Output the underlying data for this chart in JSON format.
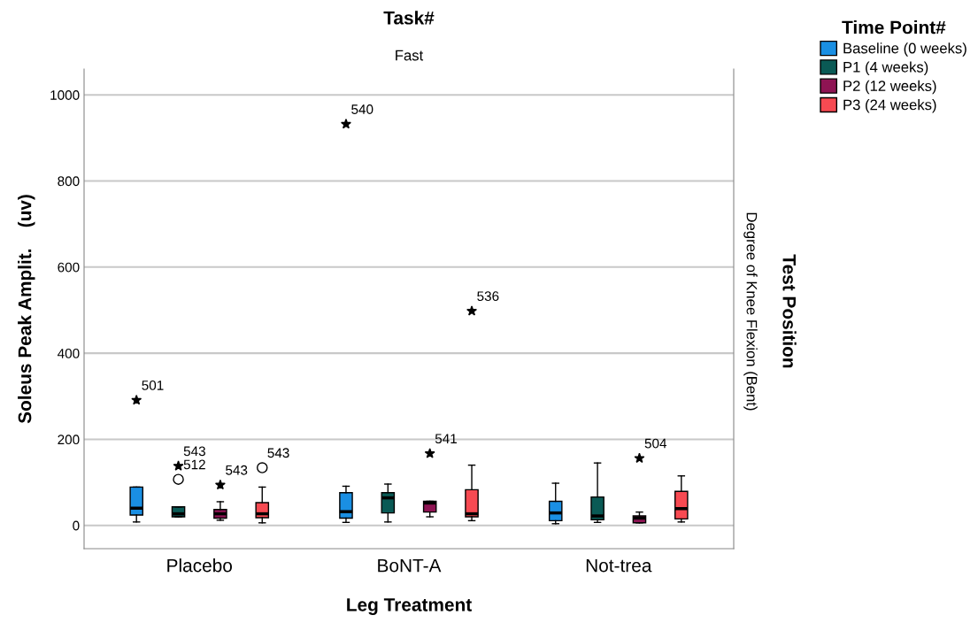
{
  "chart_data": {
    "type": "box",
    "title": "Task#",
    "subtitle": "Fast",
    "xlabel": "Leg Treatment",
    "ylabel": "Soleus Peak Amplit.    (uv)",
    "legend_title": "Time Point#",
    "categories": [
      "Placebo",
      "BoNT-A",
      "Not-trea"
    ],
    "ylim": [
      -54,
      1060
    ],
    "yticks": [
      0,
      200,
      400,
      600,
      800,
      1000
    ],
    "grid": "y",
    "legend": "top right",
    "series": [
      {
        "name": "Baseline (0 weeks)",
        "color": "#1a8fe3",
        "boxes": [
          {
            "low": 8,
            "q1": 24,
            "median": 40,
            "q3": 89,
            "high": 89
          },
          {
            "low": 7,
            "q1": 17,
            "median": 32,
            "q3": 76,
            "high": 91
          },
          {
            "low": 4,
            "q1": 11,
            "median": 29,
            "q3": 56,
            "high": 98
          }
        ]
      },
      {
        "name": "P1 (4 weeks)",
        "color": "#0a5a55",
        "boxes": [
          {
            "low": 20,
            "q1": 20,
            "median": 27,
            "q3": 43,
            "high": 43
          },
          {
            "low": 8,
            "q1": 29,
            "median": 64,
            "q3": 76,
            "high": 96
          },
          {
            "low": 7,
            "q1": 13,
            "median": 22,
            "q3": 66,
            "high": 145
          }
        ]
      },
      {
        "name": "P2 (12 weeks)",
        "color": "#8e1453",
        "boxes": [
          {
            "low": 12,
            "q1": 17,
            "median": 27,
            "q3": 37,
            "high": 55
          },
          {
            "low": 20,
            "q1": 31,
            "median": 52,
            "q3": 56,
            "high": 56
          },
          {
            "low": 6,
            "q1": 6,
            "median": 17,
            "q3": 22,
            "high": 31
          }
        ]
      },
      {
        "name": "P3 (24 weeks)",
        "color": "#f74a52",
        "boxes": [
          {
            "low": 6,
            "q1": 18,
            "median": 27,
            "q3": 53,
            "high": 89
          },
          {
            "low": 11,
            "q1": 20,
            "median": 27,
            "q3": 83,
            "high": 140
          },
          {
            "low": 8,
            "q1": 15,
            "median": 39,
            "q3": 79,
            "high": 115
          }
        ]
      },
      {
        "type": "scatter",
        "marker": "star",
        "color": "#000000",
        "values": [
          291,
          null,
          null
        ]
      },
      {
        "type": "scatter",
        "marker": "star",
        "color": "#000000",
        "values": [
          138,
          null,
          null
        ]
      },
      {
        "type": "scatter",
        "marker": "star",
        "color": "#000000",
        "values": [
          94,
          167,
          null
        ]
      },
      {
        "type": "scatter",
        "marker": "star",
        "color": "#000000",
        "values": [
          null,
          498,
          null
        ]
      },
      {
        "type": "scatter",
        "marker": "star",
        "color": "#000000",
        "values": [
          null,
          932,
          null
        ]
      },
      {
        "type": "scatter",
        "marker": "circle",
        "color": "#000000",
        "values": [
          107,
          null,
          null
        ]
      },
      {
        "type": "scatter",
        "marker": "star",
        "color": "#000000",
        "values": [
          null,
          null,
          156
        ]
      },
      {
        "type": "scatter",
        "marker": "circle",
        "color": "#000000",
        "values": [
          134,
          null,
          null
        ]
      }
    ],
    "annotations": [
      "501",
      "543",
      "543",
      "541",
      "536",
      "540",
      "512",
      "504",
      "543",
      "Degree of Knee Flexion (Bent)",
      "Test Position"
    ]
  }
}
